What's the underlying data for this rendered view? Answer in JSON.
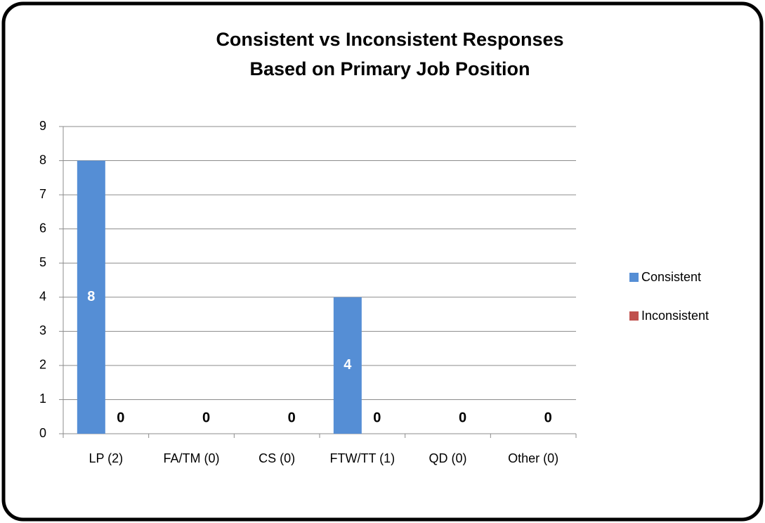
{
  "chart_data": {
    "type": "bar",
    "title": [
      "Consistent vs Inconsistent Responses",
      "Based on Primary Job Position"
    ],
    "categories": [
      "LP (2)",
      "FA/TM (0)",
      "CS (0)",
      "FTW/TT (1)",
      "QD (0)",
      "Other (0)"
    ],
    "series": [
      {
        "name": "Consistent",
        "color": "#558ed5",
        "values": [
          8,
          0,
          0,
          4,
          0,
          0
        ],
        "value_labels": [
          "8",
          null,
          null,
          "4",
          null,
          null
        ]
      },
      {
        "name": "Inconsistent",
        "color": "#c0504d",
        "values": [
          0,
          0,
          0,
          0,
          0,
          0
        ]
      }
    ],
    "ylim": [
      0,
      9
    ],
    "yticks": [
      0,
      1,
      2,
      3,
      4,
      5,
      6,
      7,
      8,
      9
    ],
    "grid": true,
    "legend": "right"
  }
}
